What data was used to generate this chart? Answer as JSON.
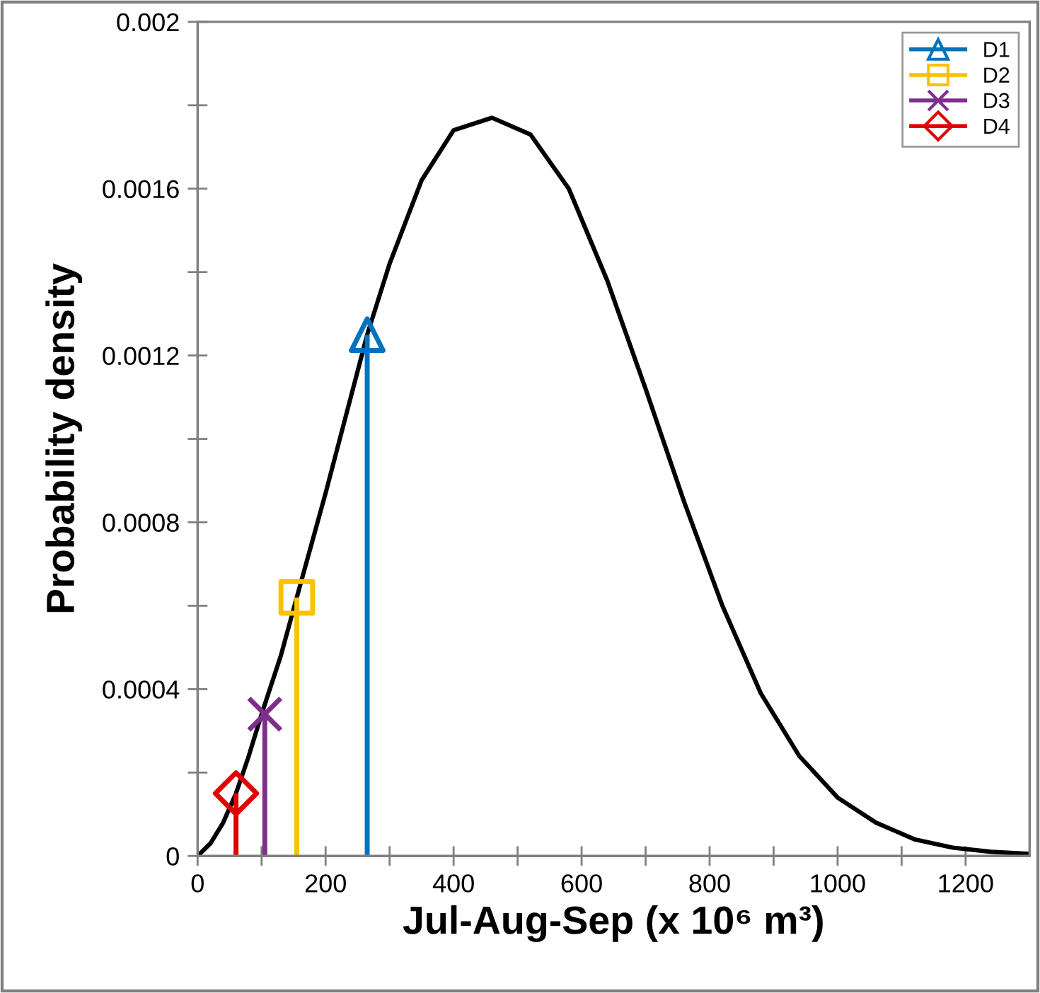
{
  "chart_data": {
    "type": "line",
    "xlabel": "Jul-Aug-Sep (x 10⁶ m³)",
    "ylabel": "Probability density",
    "xlim": [
      0,
      1300
    ],
    "ylim": [
      0,
      0.002
    ],
    "xticks": [
      0,
      {
        "value": 100,
        "label": null
      },
      200,
      {
        "value": 300,
        "label": null
      },
      400,
      {
        "value": 500,
        "label": null
      },
      600,
      {
        "value": 700,
        "label": null
      },
      800,
      {
        "value": 900,
        "label": null
      },
      1000,
      {
        "value": 1100,
        "label": null
      },
      1200
    ],
    "yticks": [
      0,
      {
        "value": 0.0002,
        "label": null
      },
      0.0004,
      {
        "value": 0.0006,
        "label": null
      },
      0.0008,
      {
        "value": 0.001,
        "label": null
      },
      0.0012,
      {
        "value": 0.0014,
        "label": null
      },
      0.0016,
      {
        "value": 0.0018,
        "label": null
      },
      0.002
    ],
    "grid": false,
    "legend": "top right",
    "series": [
      {
        "color": "#000000",
        "marker": "none",
        "x": [
          0,
          20,
          40,
          60,
          80,
          100,
          130,
          155,
          200,
          265,
          300,
          350,
          400,
          460,
          520,
          580,
          640,
          700,
          760,
          820,
          880,
          940,
          1000,
          1060,
          1120,
          1180,
          1240,
          1300
        ],
        "values": [
          0,
          3e-05,
          8e-05,
          0.00015,
          0.00024,
          0.00034,
          0.00048,
          0.00062,
          0.00087,
          0.00125,
          0.00142,
          0.00162,
          0.00174,
          0.00177,
          0.00173,
          0.0016,
          0.00138,
          0.00112,
          0.00085,
          0.0006,
          0.00039,
          0.00024,
          0.00014,
          8e-05,
          4e-05,
          2e-05,
          1e-05,
          5e-06
        ]
      },
      {
        "type": "lollipop",
        "name": "D1",
        "color": "#0072bd",
        "marker": "triangle",
        "x": [
          265
        ],
        "values": [
          0.00125
        ]
      },
      {
        "type": "lollipop",
        "name": "D2",
        "color": "#ffc000",
        "marker": "square",
        "x": [
          155
        ],
        "values": [
          0.00062
        ]
      },
      {
        "type": "lollipop",
        "name": "D3",
        "color": "#7e2f8e",
        "marker": "cross",
        "x": [
          105
        ],
        "values": [
          0.00034
        ]
      },
      {
        "type": "lollipop",
        "name": "D4",
        "color": "#e00000",
        "marker": "diamond",
        "x": [
          60
        ],
        "values": [
          0.00015
        ]
      }
    ]
  }
}
